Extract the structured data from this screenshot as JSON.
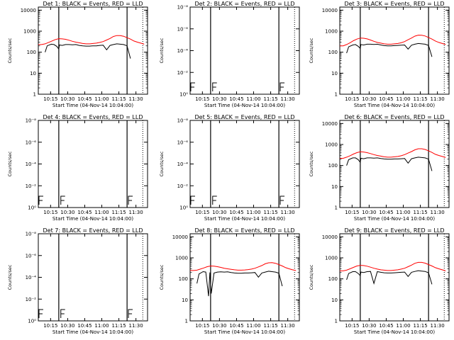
{
  "chart_data": [
    {
      "type": "line",
      "title": "Det 1: BLACK = Events, RED = LLD",
      "xlabel": "Start Time (04-Nov-14 10:04:00)",
      "ylabel": "Counts/sec",
      "x_ticks": [
        "10:15",
        "10:30",
        "10:45",
        "11:00",
        "11:15",
        "11:30"
      ],
      "y_ticks": [
        "1",
        "10",
        "100",
        "1000",
        "10000"
      ],
      "ylim": [
        1,
        14000
      ],
      "log_y": true,
      "has_data": true,
      "series": [
        {
          "color": "#ff0000",
          "x": [
            10.07,
            10.12,
            10.17,
            10.22,
            10.27,
            10.32,
            10.37,
            10.42,
            10.47,
            10.52,
            10.57,
            10.62,
            10.67,
            10.72,
            10.77,
            10.82,
            10.87,
            10.92,
            10.97,
            11.02,
            11.07,
            11.12,
            11.17,
            11.22,
            11.27,
            11.32,
            11.37,
            11.42,
            11.47,
            11.52,
            11.57,
            11.62
          ],
          "y": [
            230,
            230,
            250,
            290,
            340,
            400,
            440,
            430,
            410,
            370,
            330,
            300,
            280,
            260,
            250,
            250,
            260,
            270,
            290,
            320,
            380,
            450,
            560,
            620,
            620,
            570,
            490,
            420,
            340,
            300,
            270,
            240
          ]
        },
        {
          "color": "#000000",
          "x": [
            10.17,
            10.2,
            10.26,
            10.3,
            10.34,
            10.37,
            10.38,
            10.42,
            10.47,
            10.52,
            10.57,
            10.62,
            10.67,
            10.72,
            10.77,
            10.82,
            10.87,
            10.92,
            10.97,
            11.02,
            11.07,
            11.12,
            11.17,
            11.22,
            11.27,
            11.32,
            11.37,
            11.42
          ],
          "y": [
            100,
            200,
            240,
            230,
            190,
            140,
            220,
            210,
            230,
            230,
            225,
            230,
            210,
            200,
            195,
            195,
            200,
            200,
            210,
            215,
            130,
            210,
            230,
            250,
            240,
            230,
            200,
            50
          ]
        }
      ]
    },
    {
      "type": "line",
      "title": "Det 2: BLACK = Events, RED = LLD",
      "xlabel": "Start Time (04-Nov-14 10:04:00)",
      "ylabel": "Counts/sec",
      "x_ticks": [
        "10:15",
        "10:30",
        "10:45",
        "11:00",
        "11:15",
        "11:30"
      ],
      "y_ticks": [
        "10⁰",
        "10⁻²",
        "10⁻⁴",
        "10⁻⁶",
        "10⁻⁸"
      ],
      "ylim": [
        0,
        8
      ],
      "has_data": false
    },
    {
      "type": "line",
      "title": "Det 3: BLACK = Events, RED = LLD",
      "xlabel": "Start Time (04-Nov-14 10:04:00)",
      "ylabel": "Counts/sec",
      "x_ticks": [
        "10:15",
        "10:30",
        "10:45",
        "11:00",
        "11:15",
        "11:30"
      ],
      "y_ticks": [
        "1",
        "10",
        "100",
        "1000",
        "10000"
      ],
      "ylim": [
        1,
        14000
      ],
      "log_y": true,
      "has_data": true,
      "series": [
        {
          "color": "#ff0000",
          "x": [
            10.07,
            10.12,
            10.17,
            10.22,
            10.27,
            10.32,
            10.37,
            10.42,
            10.47,
            10.52,
            10.57,
            10.62,
            10.67,
            10.72,
            10.77,
            10.82,
            10.87,
            10.92,
            10.97,
            11.02,
            11.07,
            11.12,
            11.17,
            11.22,
            11.27,
            11.32,
            11.37,
            11.42,
            11.47,
            11.52,
            11.57,
            11.62
          ],
          "y": [
            200,
            200,
            230,
            280,
            350,
            420,
            470,
            460,
            430,
            380,
            330,
            290,
            270,
            250,
            240,
            240,
            250,
            260,
            280,
            320,
            390,
            470,
            580,
            650,
            640,
            590,
            500,
            420,
            340,
            290,
            260,
            230
          ]
        },
        {
          "color": "#000000",
          "x": [
            10.17,
            10.2,
            10.26,
            10.3,
            10.34,
            10.37,
            10.38,
            10.42,
            10.47,
            10.52,
            10.57,
            10.62,
            10.67,
            10.72,
            10.77,
            10.82,
            10.87,
            10.92,
            10.97,
            11.02,
            11.07,
            11.12,
            11.17,
            11.22,
            11.27,
            11.32,
            11.37,
            11.42
          ],
          "y": [
            90,
            180,
            220,
            230,
            190,
            150,
            230,
            220,
            240,
            240,
            235,
            240,
            220,
            205,
            200,
            200,
            205,
            210,
            215,
            220,
            140,
            215,
            240,
            260,
            250,
            240,
            210,
            60
          ]
        }
      ]
    },
    {
      "type": "line",
      "title": "Det 4: BLACK = Events, RED = LLD",
      "xlabel": "Start Time (04-Nov-14 10:04:00)",
      "ylabel": "Counts/sec",
      "x_ticks": [
        "10:15",
        "10:30",
        "10:45",
        "11:00",
        "11:15",
        "11:30"
      ],
      "y_ticks": [
        "10⁰",
        "10⁻²",
        "10⁻⁴",
        "10⁻⁶",
        "10⁻⁸"
      ],
      "ylim": [
        0,
        8
      ],
      "has_data": false
    },
    {
      "type": "line",
      "title": "Det 5: BLACK = Events, RED = LLD",
      "xlabel": "Start Time (04-Nov-14 10:04:00)",
      "ylabel": "Counts/sec",
      "x_ticks": [
        "10:15",
        "10:30",
        "10:45",
        "11:00",
        "11:15",
        "11:30"
      ],
      "y_ticks": [
        "10⁰",
        "10⁻²",
        "10⁻⁴",
        "10⁻⁶",
        "10⁻⁸"
      ],
      "ylim": [
        0,
        8
      ],
      "has_data": false
    },
    {
      "type": "line",
      "title": "Det 6: BLACK = Events, RED = LLD",
      "xlabel": "Start Time (04-Nov-14 10:04:00)",
      "ylabel": "Counts/sec",
      "x_ticks": [
        "10:15",
        "10:30",
        "10:45",
        "11:00",
        "11:15",
        "11:30"
      ],
      "y_ticks": [
        "1",
        "10",
        "100",
        "1000",
        "10000"
      ],
      "ylim": [
        1,
        14000
      ],
      "log_y": true,
      "has_data": true,
      "series": [
        {
          "color": "#ff0000",
          "x": [
            10.07,
            10.12,
            10.17,
            10.22,
            10.27,
            10.32,
            10.37,
            10.42,
            10.47,
            10.52,
            10.57,
            10.62,
            10.67,
            10.72,
            10.77,
            10.82,
            10.87,
            10.92,
            10.97,
            11.02,
            11.07,
            11.12,
            11.17,
            11.22,
            11.27,
            11.32,
            11.37,
            11.42,
            11.47,
            11.52,
            11.57,
            11.62
          ],
          "y": [
            220,
            220,
            250,
            290,
            350,
            410,
            450,
            440,
            410,
            370,
            330,
            300,
            280,
            260,
            250,
            250,
            260,
            270,
            290,
            330,
            390,
            460,
            560,
            630,
            630,
            580,
            500,
            420,
            340,
            300,
            270,
            240
          ]
        },
        {
          "color": "#000000",
          "x": [
            10.17,
            10.2,
            10.26,
            10.3,
            10.34,
            10.37,
            10.38,
            10.42,
            10.47,
            10.52,
            10.57,
            10.62,
            10.67,
            10.72,
            10.77,
            10.82,
            10.87,
            10.92,
            10.97,
            11.02,
            11.07,
            11.12,
            11.17,
            11.22,
            11.27,
            11.32,
            11.37,
            11.42
          ],
          "y": [
            100,
            190,
            230,
            230,
            190,
            140,
            220,
            210,
            230,
            230,
            225,
            230,
            215,
            205,
            200,
            200,
            205,
            205,
            210,
            215,
            130,
            210,
            230,
            250,
            240,
            230,
            200,
            55
          ]
        }
      ]
    },
    {
      "type": "line",
      "title": "Det 7: BLACK = Events, RED = LLD",
      "xlabel": "Start Time (04-Nov-14 10:04:00)",
      "ylabel": "Counts/sec",
      "x_ticks": [
        "10:15",
        "10:30",
        "10:45",
        "11:00",
        "11:15",
        "11:30"
      ],
      "y_ticks": [
        "10⁰",
        "10⁻²",
        "10⁻⁴",
        "10⁻⁶",
        "10⁻⁸"
      ],
      "ylim": [
        0,
        8
      ],
      "has_data": false
    },
    {
      "type": "line",
      "title": "Det 8: BLACK = Events, RED = LLD",
      "xlabel": "Start Time (04-Nov-14 10:04:00)",
      "ylabel": "Counts/sec",
      "x_ticks": [
        "10:15",
        "10:30",
        "10:45",
        "11:00",
        "11:15",
        "11:30"
      ],
      "y_ticks": [
        "1",
        "10",
        "100",
        "1000",
        "10000"
      ],
      "ylim": [
        1,
        14000
      ],
      "log_y": true,
      "has_data": true,
      "series": [
        {
          "color": "#ff0000",
          "x": [
            10.07,
            10.12,
            10.17,
            10.22,
            10.27,
            10.32,
            10.37,
            10.42,
            10.47,
            10.52,
            10.57,
            10.62,
            10.67,
            10.72,
            10.77,
            10.82,
            10.87,
            10.92,
            10.97,
            11.02,
            11.07,
            11.12,
            11.17,
            11.22,
            11.27,
            11.32,
            11.37,
            11.42,
            11.47,
            11.52,
            11.57,
            11.62
          ],
          "y": [
            250,
            250,
            260,
            290,
            330,
            380,
            410,
            400,
            380,
            350,
            320,
            300,
            285,
            270,
            260,
            260,
            265,
            275,
            290,
            320,
            370,
            430,
            520,
            580,
            590,
            550,
            480,
            410,
            340,
            300,
            270,
            250
          ]
        },
        {
          "color": "#000000",
          "x": [
            10.17,
            10.2,
            10.26,
            10.3,
            10.34,
            10.36,
            10.38,
            10.42,
            10.47,
            10.52,
            10.57,
            10.62,
            10.67,
            10.72,
            10.77,
            10.82,
            10.87,
            10.92,
            10.97,
            11.02,
            11.07,
            11.12,
            11.17,
            11.22,
            11.27,
            11.32,
            11.37,
            11.42
          ],
          "y": [
            60,
            170,
            220,
            210,
            15,
            200,
            20,
            190,
            210,
            215,
            210,
            215,
            200,
            190,
            185,
            185,
            190,
            190,
            195,
            200,
            120,
            190,
            210,
            230,
            220,
            210,
            185,
            45
          ]
        }
      ]
    },
    {
      "type": "line",
      "title": "Det 9: BLACK = Events, RED = LLD",
      "xlabel": "Start Time (04-Nov-14 10:04:00)",
      "ylabel": "Counts/sec",
      "x_ticks": [
        "10:15",
        "10:30",
        "10:45",
        "11:00",
        "11:15",
        "11:30"
      ],
      "y_ticks": [
        "1",
        "10",
        "100",
        "1000",
        "10000"
      ],
      "ylim": [
        1,
        14000
      ],
      "log_y": true,
      "has_data": true,
      "series": [
        {
          "color": "#ff0000",
          "x": [
            10.07,
            10.12,
            10.17,
            10.22,
            10.27,
            10.32,
            10.37,
            10.42,
            10.47,
            10.52,
            10.57,
            10.62,
            10.67,
            10.72,
            10.77,
            10.82,
            10.87,
            10.92,
            10.97,
            11.02,
            11.07,
            11.12,
            11.17,
            11.22,
            11.27,
            11.32,
            11.37,
            11.42,
            11.47,
            11.52,
            11.57,
            11.62
          ],
          "y": [
            240,
            240,
            260,
            300,
            350,
            410,
            440,
            430,
            400,
            360,
            320,
            290,
            270,
            260,
            250,
            250,
            260,
            270,
            290,
            320,
            380,
            450,
            550,
            610,
            610,
            560,
            480,
            410,
            340,
            300,
            270,
            240
          ]
        },
        {
          "color": "#000000",
          "x": [
            10.17,
            10.2,
            10.26,
            10.3,
            10.34,
            10.37,
            10.38,
            10.42,
            10.47,
            10.52,
            10.57,
            10.62,
            10.67,
            10.72,
            10.77,
            10.82,
            10.87,
            10.92,
            10.97,
            11.02,
            11.07,
            11.12,
            11.17,
            11.22,
            11.27,
            11.32,
            11.37,
            11.42
          ],
          "y": [
            90,
            180,
            220,
            220,
            180,
            140,
            210,
            200,
            220,
            225,
            60,
            220,
            205,
            195,
            190,
            190,
            195,
            200,
            205,
            210,
            130,
            205,
            225,
            245,
            235,
            225,
            195,
            55
          ]
        }
      ]
    }
  ],
  "colors": {
    "events": "#000000",
    "lld": "#ff0000",
    "background": "#ffffff"
  }
}
